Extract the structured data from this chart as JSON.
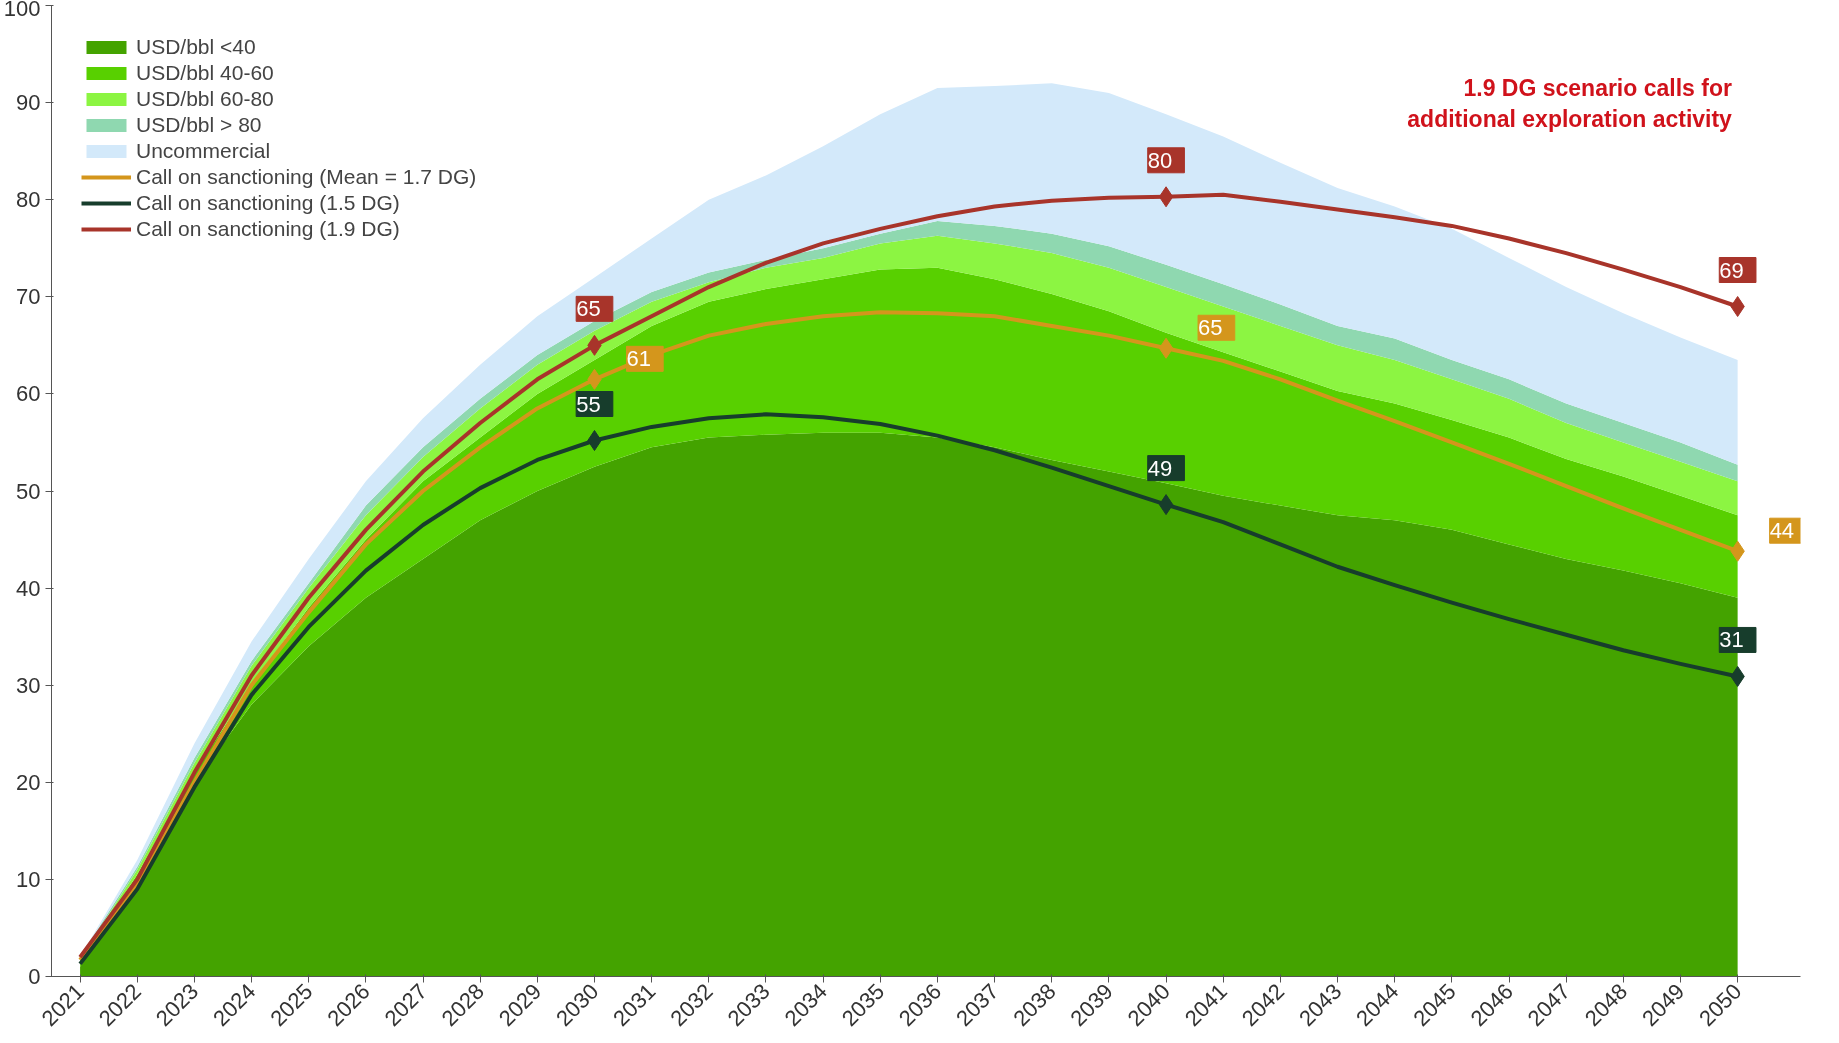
{
  "chart_data": {
    "type": "area",
    "stacked": true,
    "categories": [
      "2021",
      "2022",
      "2023",
      "2024",
      "2025",
      "2026",
      "2027",
      "2028",
      "2029",
      "2030",
      "2031",
      "2032",
      "2033",
      "2034",
      "2035",
      "2036",
      "2037",
      "2038",
      "2039",
      "2040",
      "2041",
      "2042",
      "2043",
      "2044",
      "2045",
      "2046",
      "2047",
      "2048",
      "2049",
      "2050"
    ],
    "ylim": [
      0,
      100
    ],
    "yticks": [
      0,
      10,
      20,
      30,
      40,
      50,
      60,
      70,
      80,
      90,
      100
    ],
    "grid": false,
    "legend": "top left",
    "series": [
      {
        "name": "USD/bbl <40",
        "color": "#44a300",
        "values": [
          1,
          10,
          20,
          28,
          34,
          39,
          43,
          47,
          50,
          52.5,
          54.5,
          55.5,
          55.8,
          56,
          56,
          55.5,
          54.5,
          53.2,
          52,
          50.8,
          49.5,
          48.5,
          47.5,
          47,
          46,
          44.5,
          43,
          41.8,
          40.5,
          39
        ]
      },
      {
        "name": "USD/bbl 40-60",
        "color": "#58d000",
        "values": [
          0.5,
          0.5,
          1,
          2,
          4,
          6,
          8,
          8.5,
          10,
          11,
          12.5,
          14,
          15,
          15.8,
          16.8,
          17.5,
          17.3,
          17.1,
          16.5,
          15.5,
          14.8,
          13.8,
          12.8,
          12,
          11.3,
          11,
          10.3,
          9.7,
          9,
          8.5
        ]
      },
      {
        "name": "USD/bbl 60-80",
        "color": "#8cf542",
        "values": [
          0.3,
          0.5,
          1,
          2,
          2,
          2.5,
          2.5,
          3,
          3,
          3,
          2.5,
          2,
          2.2,
          2.2,
          2.7,
          3.3,
          3.7,
          4.2,
          4.5,
          4.7,
          4.7,
          4.7,
          4.7,
          4.5,
          4.2,
          4,
          3.7,
          3.5,
          3.5,
          3.5
        ]
      },
      {
        "name": "USD/bbl > 80",
        "color": "#8fd8b0",
        "values": [
          0.2,
          0.3,
          0.5,
          0.5,
          0.5,
          1,
          1,
          1,
          1,
          1,
          1,
          1,
          0.8,
          1,
          1,
          1.5,
          1.8,
          2,
          2.2,
          2.3,
          2.3,
          2.2,
          2,
          2.2,
          2,
          2,
          2,
          2,
          2,
          1.7
        ]
      },
      {
        "name": "Uncommercial",
        "color": "#d3e9fa",
        "values": [
          0,
          0.7,
          1.5,
          2,
          2.5,
          2.5,
          3,
          3.5,
          4,
          4.5,
          5.5,
          7.5,
          8.7,
          10.5,
          12.3,
          13.7,
          14.4,
          15.5,
          15.8,
          15.5,
          15.2,
          14.6,
          14.2,
          13.6,
          13.5,
          12.5,
          12,
          11.3,
          10.8,
          10.8
        ]
      },
      {
        "name": "Call on sanctioning (Mean = 1.7 DG)",
        "type": "line",
        "color": "#d4961c",
        "values": [
          1.7,
          9.5,
          20,
          30,
          37.5,
          44.5,
          50,
          54.5,
          58.5,
          61.5,
          64,
          66,
          67.2,
          68,
          68.4,
          68.3,
          68,
          67,
          66,
          64.7,
          63.4,
          61.5,
          59.3,
          57.2,
          55,
          52.8,
          50.5,
          48.2,
          46,
          43.8
        ],
        "value_labels": [
          null,
          null,
          null,
          null,
          null,
          null,
          null,
          null,
          null,
          "61",
          null,
          null,
          null,
          null,
          null,
          null,
          null,
          null,
          null,
          "65",
          null,
          null,
          null,
          null,
          null,
          null,
          null,
          null,
          null,
          "44"
        ]
      },
      {
        "name": "Call on sanctioning (1.5 DG)",
        "type": "line",
        "color": "#173d2c",
        "values": [
          1.3,
          9,
          19.5,
          29,
          36,
          41.8,
          46.5,
          50.3,
          53.2,
          55.2,
          56.6,
          57.5,
          57.9,
          57.6,
          56.9,
          55.7,
          54.2,
          52.4,
          50.5,
          48.6,
          46.8,
          44.5,
          42.2,
          40.3,
          38.5,
          36.8,
          35.2,
          33.6,
          32.2,
          30.9
        ],
        "value_labels": [
          null,
          null,
          null,
          null,
          null,
          null,
          null,
          null,
          null,
          "55",
          null,
          null,
          null,
          null,
          null,
          null,
          null,
          null,
          null,
          "49",
          null,
          null,
          null,
          null,
          null,
          null,
          null,
          null,
          null,
          "31"
        ]
      },
      {
        "name": "Call on sanctioning (1.9 DG)",
        "type": "line",
        "color": "#a8342a",
        "values": [
          2,
          10,
          21,
          31,
          39,
          46,
          52,
          57,
          61.5,
          65,
          68,
          71,
          73.5,
          75.5,
          77,
          78.3,
          79.3,
          79.9,
          80.2,
          80.3,
          80.5,
          79.8,
          79,
          78.2,
          77.3,
          76,
          74.5,
          72.8,
          71,
          69
        ],
        "value_labels": [
          null,
          null,
          null,
          null,
          null,
          null,
          null,
          null,
          null,
          "65",
          null,
          null,
          null,
          null,
          null,
          null,
          null,
          null,
          null,
          "80",
          null,
          null,
          null,
          null,
          null,
          null,
          null,
          null,
          null,
          "69"
        ]
      }
    ],
    "annotations": [
      "1.9 DG scenario calls for\nadditional exploration activity"
    ]
  }
}
